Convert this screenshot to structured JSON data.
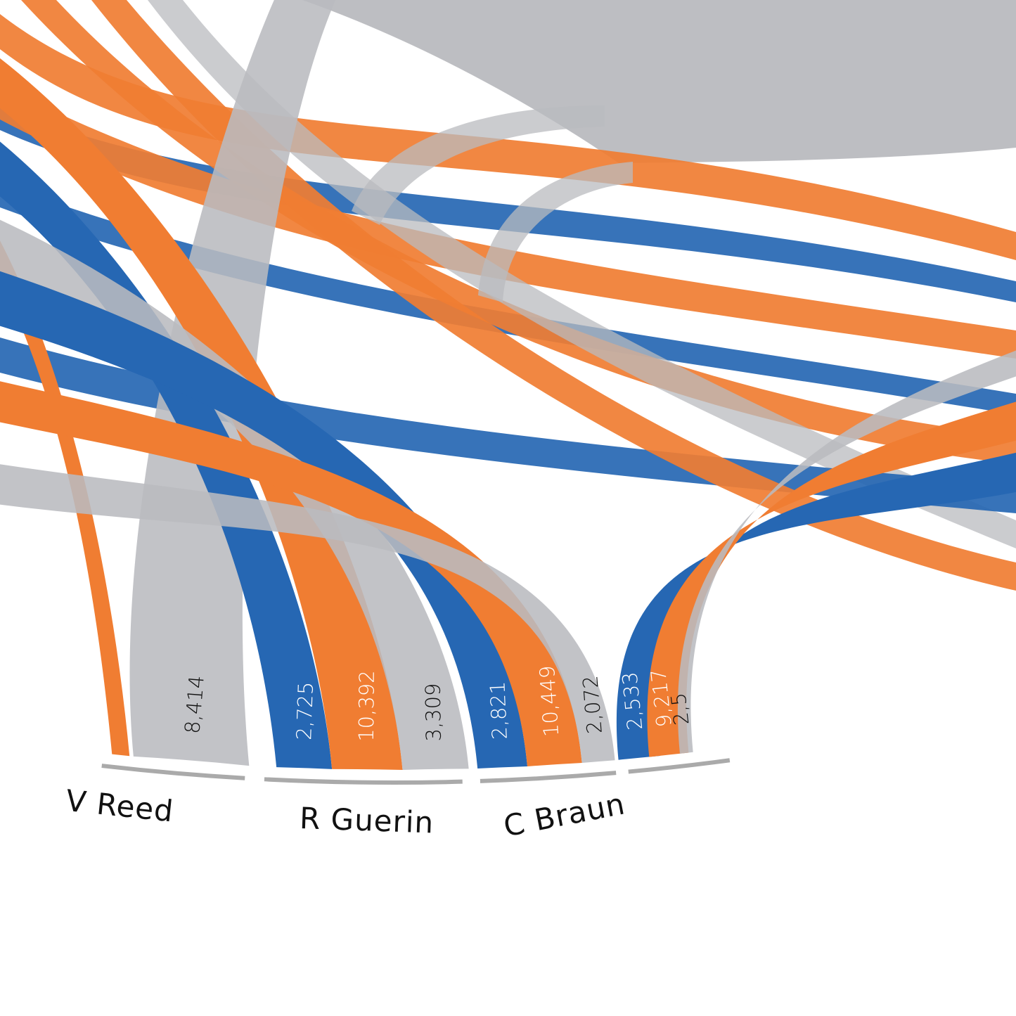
{
  "colors": {
    "orange": "#f07d32",
    "blue": "#2667b3",
    "gray": "#b9bbbf",
    "ring": "#aaaaaa",
    "text_dark": "#111111",
    "text_light": "#ffffff"
  },
  "chart_data": {
    "type": "chord",
    "title": "",
    "nodes": [
      "V Reed",
      "R Guerin",
      "C Braun"
    ],
    "groups": [
      {
        "name": "V Reed",
        "label": "V Reed",
        "segments": [
          {
            "color": "orange",
            "value": null,
            "label": ""
          },
          {
            "color": "gray",
            "value": 8414,
            "label": "8,414"
          }
        ]
      },
      {
        "name": "R Guerin",
        "label": "R Guerin",
        "segments": [
          {
            "color": "blue",
            "value": 2725,
            "label": "2,725"
          },
          {
            "color": "orange",
            "value": 10392,
            "label": "10,392"
          },
          {
            "color": "gray",
            "value": 3309,
            "label": "3,309"
          }
        ]
      },
      {
        "name": "C Braun",
        "label": "C Braun",
        "segments": [
          {
            "color": "blue",
            "value": 2821,
            "label": "2,821"
          },
          {
            "color": "orange",
            "value": 10449,
            "label": "10,449"
          },
          {
            "color": "gray",
            "value": 2072,
            "label": "2,072"
          }
        ]
      },
      {
        "name": "",
        "label": "",
        "segments": [
          {
            "color": "blue",
            "value": 2533,
            "label": "2,533"
          },
          {
            "color": "orange",
            "value": 9217,
            "label": "9,217"
          },
          {
            "color": "gray",
            "value": null,
            "label": "2,5"
          }
        ]
      }
    ]
  }
}
